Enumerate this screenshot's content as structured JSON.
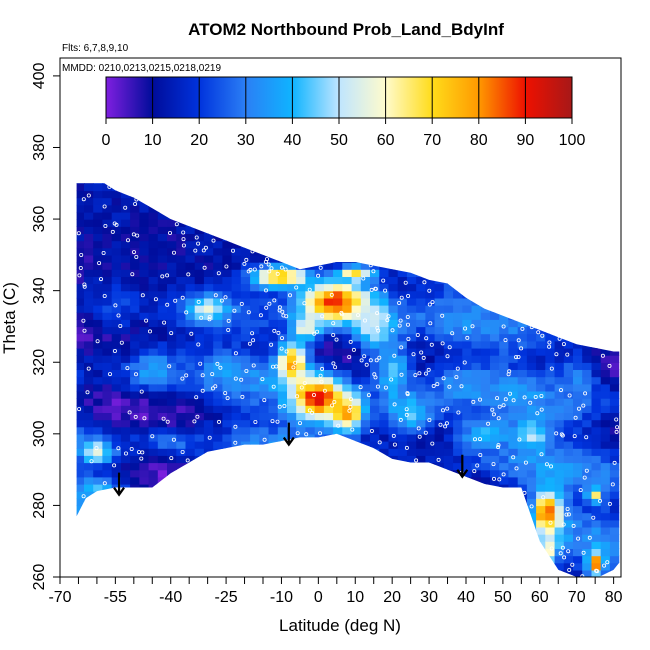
{
  "chart_data": {
    "type": "heatmap",
    "title": "ATOM2 Northbound Prob_Land_BdyInf",
    "annotation_flights": "Flts: 6,7,8,9,10",
    "annotation_dates": "MMDD: 0210,0213,0215,0218,0219",
    "xlabel": "Latitude (deg N)",
    "ylabel": "Theta (C)",
    "xlim": [
      -70,
      82
    ],
    "ylim": [
      260,
      405
    ],
    "x_ticks_major": [
      -70,
      -55,
      -40,
      -25,
      -10,
      0,
      10,
      20,
      30,
      40,
      50,
      60,
      70,
      80
    ],
    "x_ticks_minor": [
      -65,
      -60,
      -50,
      -45,
      -35,
      -30,
      -20,
      -15,
      -5,
      5,
      15,
      25,
      35,
      45,
      55,
      65,
      75
    ],
    "x_tick_labels": [
      "-70",
      "-55",
      "-40",
      "-25",
      "-10",
      "0",
      "10",
      "20",
      "30",
      "40",
      "50",
      "60",
      "70",
      "80"
    ],
    "y_ticks": [
      260,
      280,
      300,
      320,
      340,
      360,
      380,
      400
    ],
    "y_tick_labels": [
      "260",
      "280",
      "300",
      "320",
      "340",
      "360",
      "380",
      "400"
    ],
    "colorbar": {
      "min": 0,
      "max": 100,
      "ticks": [
        0,
        10,
        20,
        30,
        40,
        50,
        60,
        70,
        80,
        90,
        100
      ],
      "tick_labels": [
        "0",
        "10",
        "20",
        "30",
        "40",
        "50",
        "60",
        "70",
        "80",
        "90",
        "100"
      ],
      "colors": [
        "#7f1fe0",
        "#000c9a",
        "#0033dd",
        "#2b7ff5",
        "#0fb4ff",
        "#bfe5ff",
        "#fffbcc",
        "#ffdc1a",
        "#ff9900",
        "#ee1100",
        "#a71818"
      ]
    },
    "top_envelope": [
      [
        -65.5,
        370
      ],
      [
        -58,
        370
      ],
      [
        -55,
        368
      ],
      [
        -50,
        366
      ],
      [
        -45,
        363
      ],
      [
        -40,
        360
      ],
      [
        -35,
        358
      ],
      [
        -30,
        356
      ],
      [
        -25,
        354
      ],
      [
        -20,
        352
      ],
      [
        -15,
        350
      ],
      [
        -10,
        348
      ],
      [
        -5,
        346
      ],
      [
        0,
        347
      ],
      [
        5,
        348
      ],
      [
        10,
        348
      ],
      [
        15,
        347
      ],
      [
        20,
        346
      ],
      [
        25,
        345
      ],
      [
        30,
        343
      ],
      [
        35,
        342
      ],
      [
        40,
        338
      ],
      [
        45,
        335
      ],
      [
        50,
        333
      ],
      [
        55,
        331
      ],
      [
        60,
        329
      ],
      [
        65,
        327
      ],
      [
        70,
        325
      ],
      [
        75,
        324
      ],
      [
        80,
        323
      ],
      [
        81.5,
        323
      ]
    ],
    "bottom_envelope": [
      [
        -65.5,
        277
      ],
      [
        -63,
        282
      ],
      [
        -60,
        284
      ],
      [
        -55,
        285
      ],
      [
        -50,
        285
      ],
      [
        -45,
        285
      ],
      [
        -40,
        289
      ],
      [
        -35,
        292
      ],
      [
        -30,
        295
      ],
      [
        -25,
        296
      ],
      [
        -20,
        297
      ],
      [
        -15,
        297
      ],
      [
        -10,
        298
      ],
      [
        -5,
        299
      ],
      [
        0,
        299
      ],
      [
        5,
        300
      ],
      [
        10,
        298
      ],
      [
        15,
        296
      ],
      [
        20,
        293
      ],
      [
        25,
        292
      ],
      [
        30,
        292
      ],
      [
        35,
        290
      ],
      [
        40,
        288
      ],
      [
        45,
        286
      ],
      [
        50,
        285
      ],
      [
        55,
        285
      ],
      [
        60,
        270
      ],
      [
        65,
        262
      ],
      [
        70,
        260
      ],
      [
        76,
        260
      ],
      [
        80,
        262
      ],
      [
        81.5,
        264
      ]
    ],
    "blobs": [
      {
        "x": -45,
        "y": 352,
        "dx": 40,
        "dy": 25,
        "value": 10
      },
      {
        "x": 5,
        "y": 337,
        "dx": 10,
        "dy": 6,
        "value": 92
      },
      {
        "x": -10,
        "y": 344,
        "dx": 8,
        "dy": 3,
        "value": 78
      },
      {
        "x": -30,
        "y": 335,
        "dx": 6,
        "dy": 4,
        "value": 55
      },
      {
        "x": 0,
        "y": 310,
        "dx": 7,
        "dy": 6,
        "value": 95
      },
      {
        "x": 8,
        "y": 306,
        "dx": 5,
        "dy": 5,
        "value": 80
      },
      {
        "x": -7,
        "y": 320,
        "dx": 4,
        "dy": 6,
        "value": 78
      },
      {
        "x": -3,
        "y": 330,
        "dx": 4,
        "dy": 4,
        "value": 60
      },
      {
        "x": 15,
        "y": 330,
        "dx": 6,
        "dy": 7,
        "value": 55
      },
      {
        "x": 25,
        "y": 306,
        "dx": 8,
        "dy": 6,
        "value": 45
      },
      {
        "x": 45,
        "y": 300,
        "dx": 8,
        "dy": 5,
        "value": 40
      },
      {
        "x": 62,
        "y": 278,
        "dx": 4,
        "dy": 6,
        "value": 88
      },
      {
        "x": 62,
        "y": 268,
        "dx": 3,
        "dy": 5,
        "value": 62
      },
      {
        "x": 75,
        "y": 264,
        "dx": 2,
        "dy": 3,
        "value": 85
      },
      {
        "x": 75,
        "y": 283,
        "dx": 2,
        "dy": 2,
        "value": 65
      },
      {
        "x": 58,
        "y": 300,
        "dx": 5,
        "dy": 5,
        "value": 48
      },
      {
        "x": -45,
        "y": 318,
        "dx": 7,
        "dy": 6,
        "value": 36
      },
      {
        "x": -25,
        "y": 317,
        "dx": 6,
        "dy": 5,
        "value": 34
      },
      {
        "x": -60,
        "y": 295,
        "dx": 4,
        "dy": 3,
        "value": 60
      },
      {
        "x": -60,
        "y": 285,
        "dx": 6,
        "dy": 3,
        "value": 42
      },
      {
        "x": 20,
        "y": 318,
        "dx": 5,
        "dy": 10,
        "value": 42
      },
      {
        "x": 40,
        "y": 314,
        "dx": 8,
        "dy": 5,
        "value": 33
      },
      {
        "x": -55,
        "y": 336,
        "dx": 6,
        "dy": 8,
        "value": 22
      },
      {
        "x": 70,
        "y": 315,
        "dx": 6,
        "dy": 8,
        "value": 30
      },
      {
        "x": -40,
        "y": 298,
        "dx": 8,
        "dy": 3,
        "value": 30
      },
      {
        "x": 10,
        "y": 345,
        "dx": 5,
        "dy": 2,
        "value": 70
      }
    ],
    "base_value": 18,
    "arrows": [
      [
        -54,
        283
      ],
      [
        -8,
        297
      ],
      [
        39,
        288
      ]
    ]
  }
}
